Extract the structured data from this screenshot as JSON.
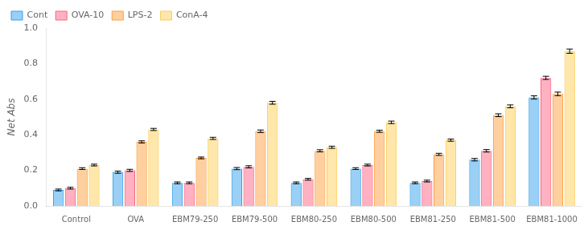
{
  "chart_data": {
    "type": "bar",
    "ylabel": "Net Abs",
    "categories": [
      "Control",
      "OVA",
      "EBM79-250",
      "EBM79-500",
      "EBM80-250",
      "EBM80-500",
      "EBM81-250",
      "EBM81-500",
      "EBM81-1000"
    ],
    "series": [
      {
        "name": "Cont",
        "values": [
          0.09,
          0.19,
          0.13,
          0.21,
          0.13,
          0.21,
          0.13,
          0.26,
          0.61
        ],
        "errors": [
          0.005,
          0.006,
          0.005,
          0.006,
          0.005,
          0.005,
          0.005,
          0.007,
          0.009
        ]
      },
      {
        "name": "OVA-10",
        "values": [
          0.1,
          0.2,
          0.13,
          0.22,
          0.15,
          0.23,
          0.14,
          0.31,
          0.72
        ],
        "errors": [
          0.005,
          0.006,
          0.005,
          0.006,
          0.005,
          0.005,
          0.005,
          0.007,
          0.009
        ]
      },
      {
        "name": "LPS-2",
        "values": [
          0.21,
          0.36,
          0.27,
          0.42,
          0.31,
          0.42,
          0.29,
          0.51,
          0.63
        ],
        "errors": [
          0.005,
          0.006,
          0.005,
          0.007,
          0.006,
          0.006,
          0.006,
          0.008,
          0.01
        ]
      },
      {
        "name": "ConA-4",
        "values": [
          0.23,
          0.43,
          0.38,
          0.58,
          0.33,
          0.47,
          0.37,
          0.56,
          0.87
        ],
        "errors": [
          0.005,
          0.006,
          0.006,
          0.008,
          0.006,
          0.007,
          0.006,
          0.008,
          0.012
        ]
      }
    ],
    "ylim": [
      0.0,
      1.0
    ],
    "yticks": [
      {
        "value": 0.0,
        "label": "0.0"
      },
      0.2,
      0.4,
      0.6,
      0.8,
      {
        "value": 1.0,
        "label": "1.0"
      }
    ],
    "grid": false,
    "legend": "upper left"
  }
}
